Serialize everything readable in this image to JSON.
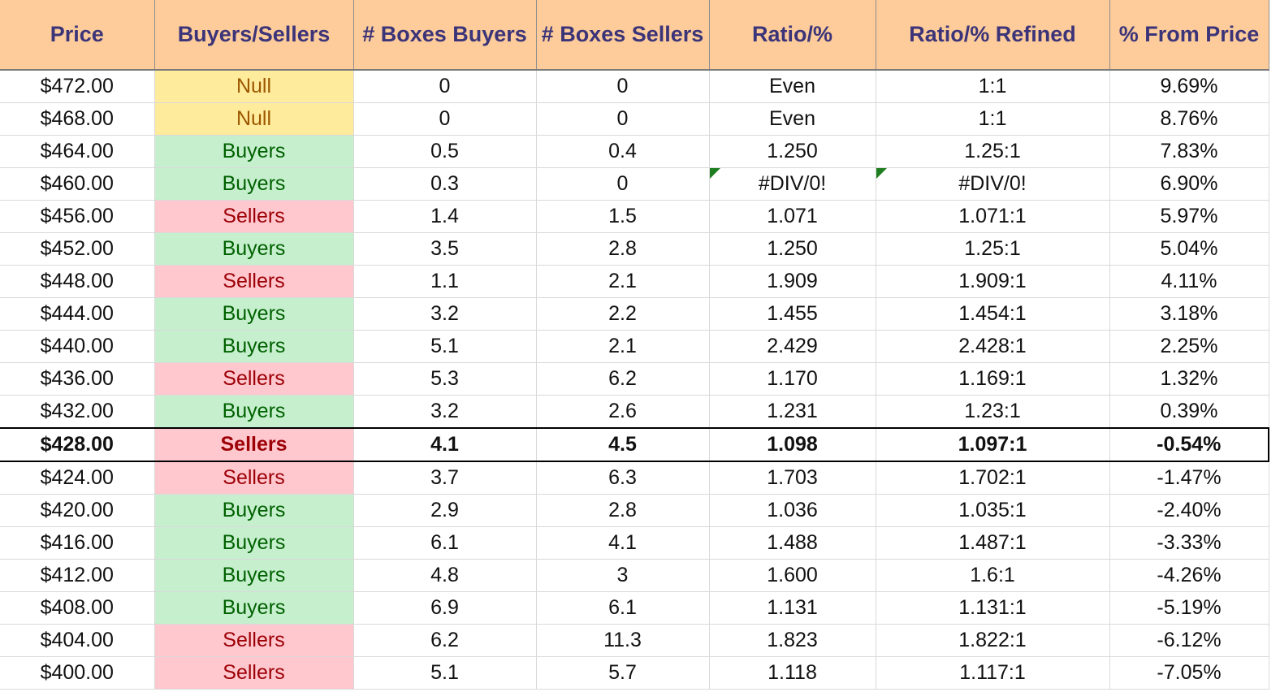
{
  "columns": [
    "Price",
    "Buyers/Sellers",
    "# Boxes Buyers",
    "# Boxes Sellers",
    "Ratio/%",
    "Ratio/% Refined",
    "% From Price"
  ],
  "rows": [
    {
      "price": "$472.00",
      "side": "Null",
      "side_type": "null",
      "buyers": "0",
      "sellers": "0",
      "ratio": "Even",
      "refined": "1:1",
      "from_price": "9.69%"
    },
    {
      "price": "$468.00",
      "side": "Null",
      "side_type": "null",
      "buyers": "0",
      "sellers": "0",
      "ratio": "Even",
      "refined": "1:1",
      "from_price": "8.76%"
    },
    {
      "price": "$464.00",
      "side": "Buyers",
      "side_type": "buyers",
      "buyers": "0.5",
      "sellers": "0.4",
      "ratio": "1.250",
      "refined": "1.25:1",
      "from_price": "7.83%"
    },
    {
      "price": "$460.00",
      "side": "Buyers",
      "side_type": "buyers",
      "buyers": "0.3",
      "sellers": "0",
      "ratio": "#DIV/0!",
      "refined": "#DIV/0!",
      "from_price": "6.90%",
      "error": true
    },
    {
      "price": "$456.00",
      "side": "Sellers",
      "side_type": "sellers",
      "buyers": "1.4",
      "sellers": "1.5",
      "ratio": "1.071",
      "refined": "1.071:1",
      "from_price": "5.97%"
    },
    {
      "price": "$452.00",
      "side": "Buyers",
      "side_type": "buyers",
      "buyers": "3.5",
      "sellers": "2.8",
      "ratio": "1.250",
      "refined": "1.25:1",
      "from_price": "5.04%"
    },
    {
      "price": "$448.00",
      "side": "Sellers",
      "side_type": "sellers",
      "buyers": "1.1",
      "sellers": "2.1",
      "ratio": "1.909",
      "refined": "1.909:1",
      "from_price": "4.11%"
    },
    {
      "price": "$444.00",
      "side": "Buyers",
      "side_type": "buyers",
      "buyers": "3.2",
      "sellers": "2.2",
      "ratio": "1.455",
      "refined": "1.454:1",
      "from_price": "3.18%"
    },
    {
      "price": "$440.00",
      "side": "Buyers",
      "side_type": "buyers",
      "buyers": "5.1",
      "sellers": "2.1",
      "ratio": "2.429",
      "refined": "2.428:1",
      "from_price": "2.25%"
    },
    {
      "price": "$436.00",
      "side": "Sellers",
      "side_type": "sellers",
      "buyers": "5.3",
      "sellers": "6.2",
      "ratio": "1.170",
      "refined": "1.169:1",
      "from_price": "1.32%"
    },
    {
      "price": "$432.00",
      "side": "Buyers",
      "side_type": "buyers",
      "buyers": "3.2",
      "sellers": "2.6",
      "ratio": "1.231",
      "refined": "1.23:1",
      "from_price": "0.39%"
    },
    {
      "price": "$428.00",
      "side": "Sellers",
      "side_type": "sellers",
      "buyers": "4.1",
      "sellers": "4.5",
      "ratio": "1.098",
      "refined": "1.097:1",
      "from_price": "-0.54%",
      "current": true
    },
    {
      "price": "$424.00",
      "side": "Sellers",
      "side_type": "sellers",
      "buyers": "3.7",
      "sellers": "6.3",
      "ratio": "1.703",
      "refined": "1.702:1",
      "from_price": "-1.47%"
    },
    {
      "price": "$420.00",
      "side": "Buyers",
      "side_type": "buyers",
      "buyers": "2.9",
      "sellers": "2.8",
      "ratio": "1.036",
      "refined": "1.035:1",
      "from_price": "-2.40%"
    },
    {
      "price": "$416.00",
      "side": "Buyers",
      "side_type": "buyers",
      "buyers": "6.1",
      "sellers": "4.1",
      "ratio": "1.488",
      "refined": "1.487:1",
      "from_price": "-3.33%"
    },
    {
      "price": "$412.00",
      "side": "Buyers",
      "side_type": "buyers",
      "buyers": "4.8",
      "sellers": "3",
      "ratio": "1.600",
      "refined": "1.6:1",
      "from_price": "-4.26%"
    },
    {
      "price": "$408.00",
      "side": "Buyers",
      "side_type": "buyers",
      "buyers": "6.9",
      "sellers": "6.1",
      "ratio": "1.131",
      "refined": "1.131:1",
      "from_price": "-5.19%"
    },
    {
      "price": "$404.00",
      "side": "Sellers",
      "side_type": "sellers",
      "buyers": "6.2",
      "sellers": "11.3",
      "ratio": "1.823",
      "refined": "1.822:1",
      "from_price": "-6.12%"
    },
    {
      "price": "$400.00",
      "side": "Sellers",
      "side_type": "sellers",
      "buyers": "5.1",
      "sellers": "5.7",
      "ratio": "1.118",
      "refined": "1.117:1",
      "from_price": "-7.05%"
    }
  ],
  "colors": {
    "header_bg": "#fdcc9a",
    "header_text": "#3c3479",
    "null_bg": "#ffeb9c",
    "null_text": "#9c5700",
    "buyers_bg": "#c6efce",
    "buyers_text": "#006100",
    "sellers_bg": "#ffc7ce",
    "sellers_text": "#9c0006",
    "error_flag": "#1e7d1e"
  }
}
